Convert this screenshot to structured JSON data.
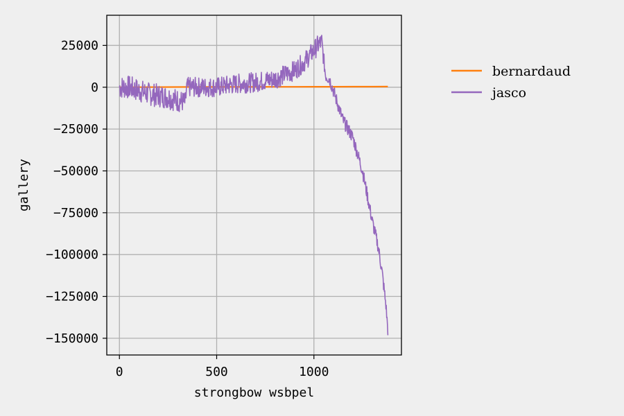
{
  "chart_data": {
    "type": "line",
    "xlabel": "strongbow wsbpel",
    "ylabel": "gallery",
    "xlim": [
      -65,
      1450
    ],
    "ylim": [
      -160000,
      43000
    ],
    "xticks": [
      0,
      500,
      1000
    ],
    "yticks": [
      25000,
      0,
      -25000,
      -50000,
      -75000,
      -100000,
      -125000,
      -150000
    ],
    "xtick_labels": [
      "0",
      "500",
      "1000"
    ],
    "ytick_labels": [
      "25000",
      "0",
      "−25000",
      "−50000",
      "−75000",
      "−100000",
      "−125000",
      "−150000"
    ],
    "grid": true,
    "legend_position": "outside-right",
    "series": [
      {
        "name": "bernardaud",
        "color": "#ff7f0e",
        "x": [
          0,
          100,
          200,
          300,
          400,
          500,
          600,
          700,
          800,
          900,
          1000,
          1100,
          1200,
          1300,
          1380
        ],
        "y": [
          0,
          50,
          100,
          120,
          150,
          170,
          200,
          220,
          240,
          260,
          280,
          300,
          320,
          340,
          350
        ]
      },
      {
        "name": "jasco",
        "color": "#9467bd",
        "x": [
          0,
          50,
          100,
          150,
          200,
          250,
          300,
          340,
          345,
          400,
          500,
          600,
          700,
          800,
          900,
          950,
          1000,
          1020,
          1040,
          1060,
          1080,
          1100,
          1150,
          1200,
          1250,
          1300,
          1330,
          1350,
          1370,
          1380
        ],
        "y": [
          0,
          0,
          -2000,
          -4000,
          -5000,
          -6000,
          -8000,
          -9000,
          0,
          0,
          0,
          2000,
          3000,
          5000,
          10000,
          15000,
          22000,
          25000,
          27000,
          7000,
          5000,
          -2000,
          -20000,
          -30000,
          -50000,
          -80000,
          -95000,
          -110000,
          -130000,
          -145000
        ],
        "amplitude": [
          7000,
          7000,
          7000,
          7000,
          7000,
          7000,
          7000,
          6000,
          6000,
          6000,
          6000,
          6000,
          6000,
          6000,
          6000,
          6000,
          6000,
          6000,
          6000,
          4000,
          4000,
          4000,
          4000,
          4000,
          4000,
          4000,
          4000,
          4000,
          4000,
          4000
        ]
      }
    ]
  }
}
